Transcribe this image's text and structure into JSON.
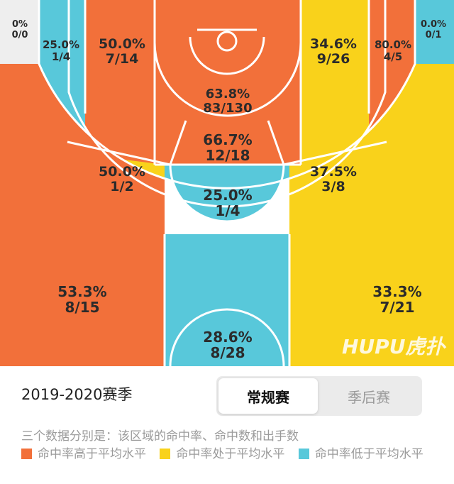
{
  "colors": {
    "above": "#F2703A",
    "average": "#F9D21B",
    "below": "#58C8DA",
    "nodata": "#EEEEEE",
    "lines": "#FFFFFF"
  },
  "chart_data": {
    "type": "heatmap",
    "zones": [
      {
        "id": "left-corner-3",
        "pct": "0%",
        "made_att": "0/0",
        "made": 0,
        "attempts": 0,
        "level": "nodata"
      },
      {
        "id": "left-wing-long-2",
        "pct": "25.0%",
        "made_att": "1/4",
        "made": 1,
        "attempts": 4,
        "level": "below"
      },
      {
        "id": "left-baseline-mid",
        "pct": "50.0%",
        "made_att": "7/14",
        "made": 7,
        "attempts": 14,
        "level": "above"
      },
      {
        "id": "restricted-area",
        "pct": "63.8%",
        "made_att": "83/130",
        "made": 83,
        "attempts": 130,
        "level": "above"
      },
      {
        "id": "paint",
        "pct": "66.7%",
        "made_att": "12/18",
        "made": 12,
        "attempts": 18,
        "level": "above"
      },
      {
        "id": "right-baseline-mid",
        "pct": "34.6%",
        "made_att": "9/26",
        "made": 9,
        "attempts": 26,
        "level": "average"
      },
      {
        "id": "right-wing-long-2",
        "pct": "80.0%",
        "made_att": "4/5",
        "made": 4,
        "attempts": 5,
        "level": "above"
      },
      {
        "id": "right-corner-3",
        "pct": "0.0%",
        "made_att": "0/1",
        "made": 0,
        "attempts": 1,
        "level": "below"
      },
      {
        "id": "left-elbow",
        "pct": "50.0%",
        "made_att": "1/2",
        "made": 1,
        "attempts": 2,
        "level": "average"
      },
      {
        "id": "top-key",
        "pct": "25.0%",
        "made_att": "1/4",
        "made": 1,
        "attempts": 4,
        "level": "below"
      },
      {
        "id": "right-elbow",
        "pct": "37.5%",
        "made_att": "3/8",
        "made": 3,
        "attempts": 8,
        "level": "average"
      },
      {
        "id": "left-wing-3",
        "pct": "53.3%",
        "made_att": "8/15",
        "made": 8,
        "attempts": 15,
        "level": "above"
      },
      {
        "id": "top-3",
        "pct": "28.6%",
        "made_att": "8/28",
        "made": 8,
        "attempts": 28,
        "level": "below"
      },
      {
        "id": "right-wing-3",
        "pct": "33.3%",
        "made_att": "7/21",
        "made": 7,
        "attempts": 21,
        "level": "average"
      }
    ]
  },
  "watermark": "HUPU虎扑",
  "season": "2019-2020赛季",
  "tabs": [
    {
      "label": "常规赛",
      "active": true
    },
    {
      "label": "季后赛",
      "active": false
    }
  ],
  "description": "三个数据分别是：该区域的命中率、命中数和出手数",
  "legend": [
    {
      "label": "命中率高于平均水平",
      "color_key": "above"
    },
    {
      "label": "命中率处于平均水平",
      "color_key": "average"
    },
    {
      "label": "命中率低于平均水平",
      "color_key": "below"
    }
  ]
}
